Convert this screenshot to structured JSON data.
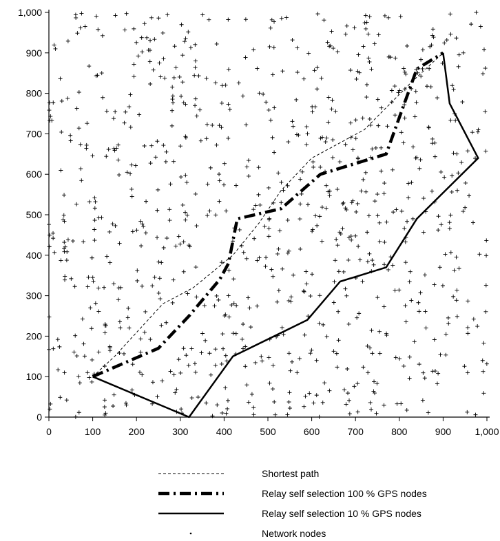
{
  "chart_data": {
    "type": "scatter",
    "title": "",
    "xlabel": "",
    "ylabel": "",
    "xlim": [
      0,
      1000
    ],
    "ylim": [
      0,
      1000
    ],
    "x_ticks": [
      "0",
      "100",
      "200",
      "300",
      "400",
      "500",
      "600",
      "700",
      "800",
      "900",
      "1,000"
    ],
    "y_ticks": [
      "0",
      "100",
      "200",
      "300",
      "400",
      "500",
      "600",
      "700",
      "800",
      "900",
      "1,000"
    ],
    "grid": false,
    "legend_position": "bottom",
    "series": [
      {
        "name": "Shortest path",
        "style": "dashed-thin",
        "color": "#000000",
        "points": [
          [
            100,
            100
          ],
          [
            150,
            150
          ],
          [
            260,
            280
          ],
          [
            330,
            320
          ],
          [
            420,
            400
          ],
          [
            480,
            480
          ],
          [
            530,
            560
          ],
          [
            600,
            640
          ],
          [
            720,
            710
          ],
          [
            830,
            830
          ],
          [
            900,
            900
          ]
        ]
      },
      {
        "name": "Relay self selection 100 % GPS nodes",
        "style": "dash-dot-thick",
        "color": "#000000",
        "points": [
          [
            100,
            100
          ],
          [
            250,
            170
          ],
          [
            320,
            250
          ],
          [
            390,
            340
          ],
          [
            410,
            380
          ],
          [
            430,
            490
          ],
          [
            530,
            515
          ],
          [
            620,
            600
          ],
          [
            770,
            650
          ],
          [
            840,
            860
          ],
          [
            900,
            900
          ]
        ]
      },
      {
        "name": "Relay self selection 10 % GPS nodes",
        "style": "solid",
        "color": "#000000",
        "points": [
          [
            100,
            100
          ],
          [
            320,
            0
          ],
          [
            420,
            150
          ],
          [
            590,
            240
          ],
          [
            665,
            335
          ],
          [
            770,
            370
          ],
          [
            840,
            490
          ],
          [
            980,
            640
          ],
          [
            915,
            775
          ],
          [
            900,
            900
          ]
        ]
      },
      {
        "name": "Network nodes",
        "style": "markers",
        "marker": "plus",
        "color": "#000000",
        "count": 900,
        "seed": 7
      }
    ]
  },
  "legend": {
    "items": [
      {
        "label": "Shortest path"
      },
      {
        "label": "Relay self selection 100 % GPS nodes"
      },
      {
        "label": "Relay self selection 10 % GPS nodes"
      },
      {
        "label": "Network nodes"
      }
    ]
  }
}
